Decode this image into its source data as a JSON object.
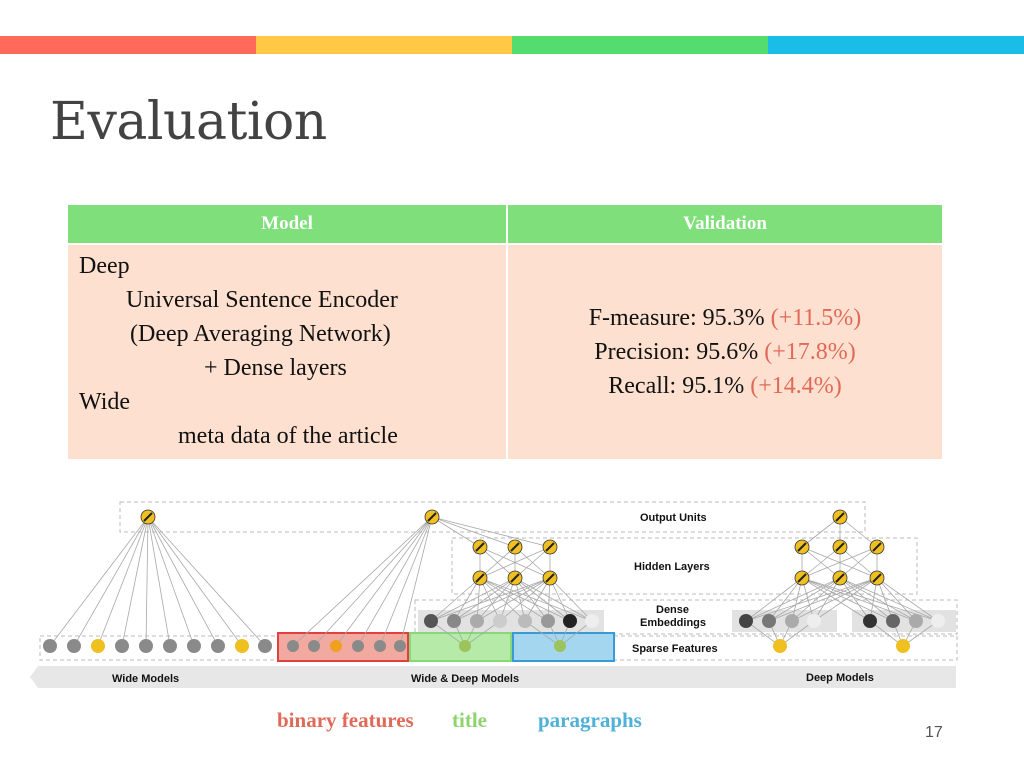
{
  "slide": {
    "title": "Evaluation",
    "page_number": "17",
    "stripe_colors": [
      "#ff6a5b",
      "#ffc845",
      "#55dc6e",
      "#19bde6"
    ]
  },
  "table": {
    "headers": [
      "Model",
      "Validation"
    ],
    "model_lines": [
      "Deep",
      "Universal Sentence Encoder",
      "(Deep Averaging Network)",
      "+ Dense layers",
      "Wide",
      "meta data of the article"
    ],
    "validation": [
      {
        "label": "F-measure: 95.3% ",
        "delta": "(+11.5%)"
      },
      {
        "label": "Precision: 95.6% ",
        "delta": "(+17.8%)"
      },
      {
        "label": "Recall: 95.1% ",
        "delta": "(+14.4%)"
      }
    ],
    "header_color": "#7fdf7a",
    "body_color": "#fde0cf",
    "delta_color": "#e06a57"
  },
  "diagram": {
    "labels": {
      "output_units": "Output Units",
      "hidden_layers": "Hidden Layers",
      "dense": "Dense",
      "embeddings": "Embeddings",
      "sparse_features": "Sparse Features",
      "wide_models": "Wide Models",
      "wide_deep_models": "Wide & Deep Models",
      "deep_models": "Deep Models"
    }
  },
  "legend": {
    "binary": {
      "label": "binary features",
      "color": "#e06a57"
    },
    "title": {
      "label": "title",
      "color": "#8fd36e"
    },
    "paragraphs": {
      "label": "paragraphs",
      "color": "#4fb0d8"
    }
  }
}
